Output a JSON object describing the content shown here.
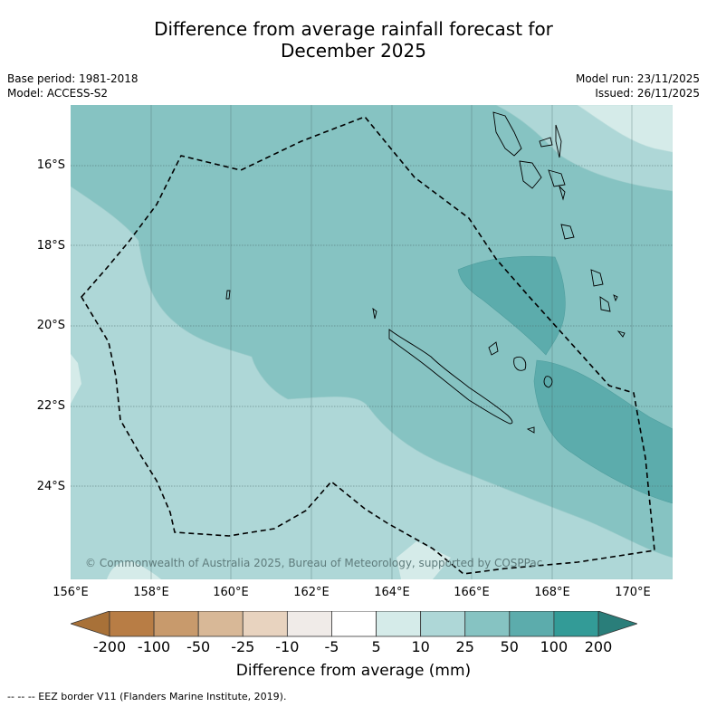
{
  "title": {
    "line1": "Difference from average rainfall forecast for",
    "line2": "December 2025"
  },
  "meta_left": {
    "base_period": "Base period: 1981-2018",
    "model": "Model: ACCESS-S2"
  },
  "meta_right": {
    "model_run": "Model run: 23/11/2025",
    "issued": "Issued: 26/11/2025"
  },
  "map": {
    "lat_labels": [
      "16°S",
      "18°S",
      "20°S",
      "22°S",
      "24°S"
    ],
    "lon_labels": [
      "156°E",
      "158°E",
      "160°E",
      "162°E",
      "164°E",
      "166°E",
      "168°E",
      "170°E"
    ],
    "copyright": "© Commonwealth of Australia 2025, Bureau of Meteorology, supported by COSPPac",
    "region_fill_colors": {
      "5_to_10": "#d5ebe9",
      "10_to_25": "#aed7d7",
      "25_to_50": "#86c3c2",
      "50_to_100": "#5cacac"
    }
  },
  "colorbar": {
    "title": "Difference from average (mm)",
    "ticks": [
      "-200",
      "-100",
      "-50",
      "-25",
      "-10",
      "-5",
      "5",
      "10",
      "25",
      "50",
      "100",
      "200"
    ],
    "colors": [
      "#a87138",
      "#b87d45",
      "#c89a6c",
      "#d8b897",
      "#e8d3bf",
      "#f0ebe8",
      "#ffffff",
      "#d5ebe9",
      "#aed7d7",
      "#86c3c2",
      "#5cacac",
      "#339b97",
      "#2a7e7a"
    ]
  },
  "footnote": "-- -- -- EEZ border V11 (Flanders Marine Institute, 2019)."
}
